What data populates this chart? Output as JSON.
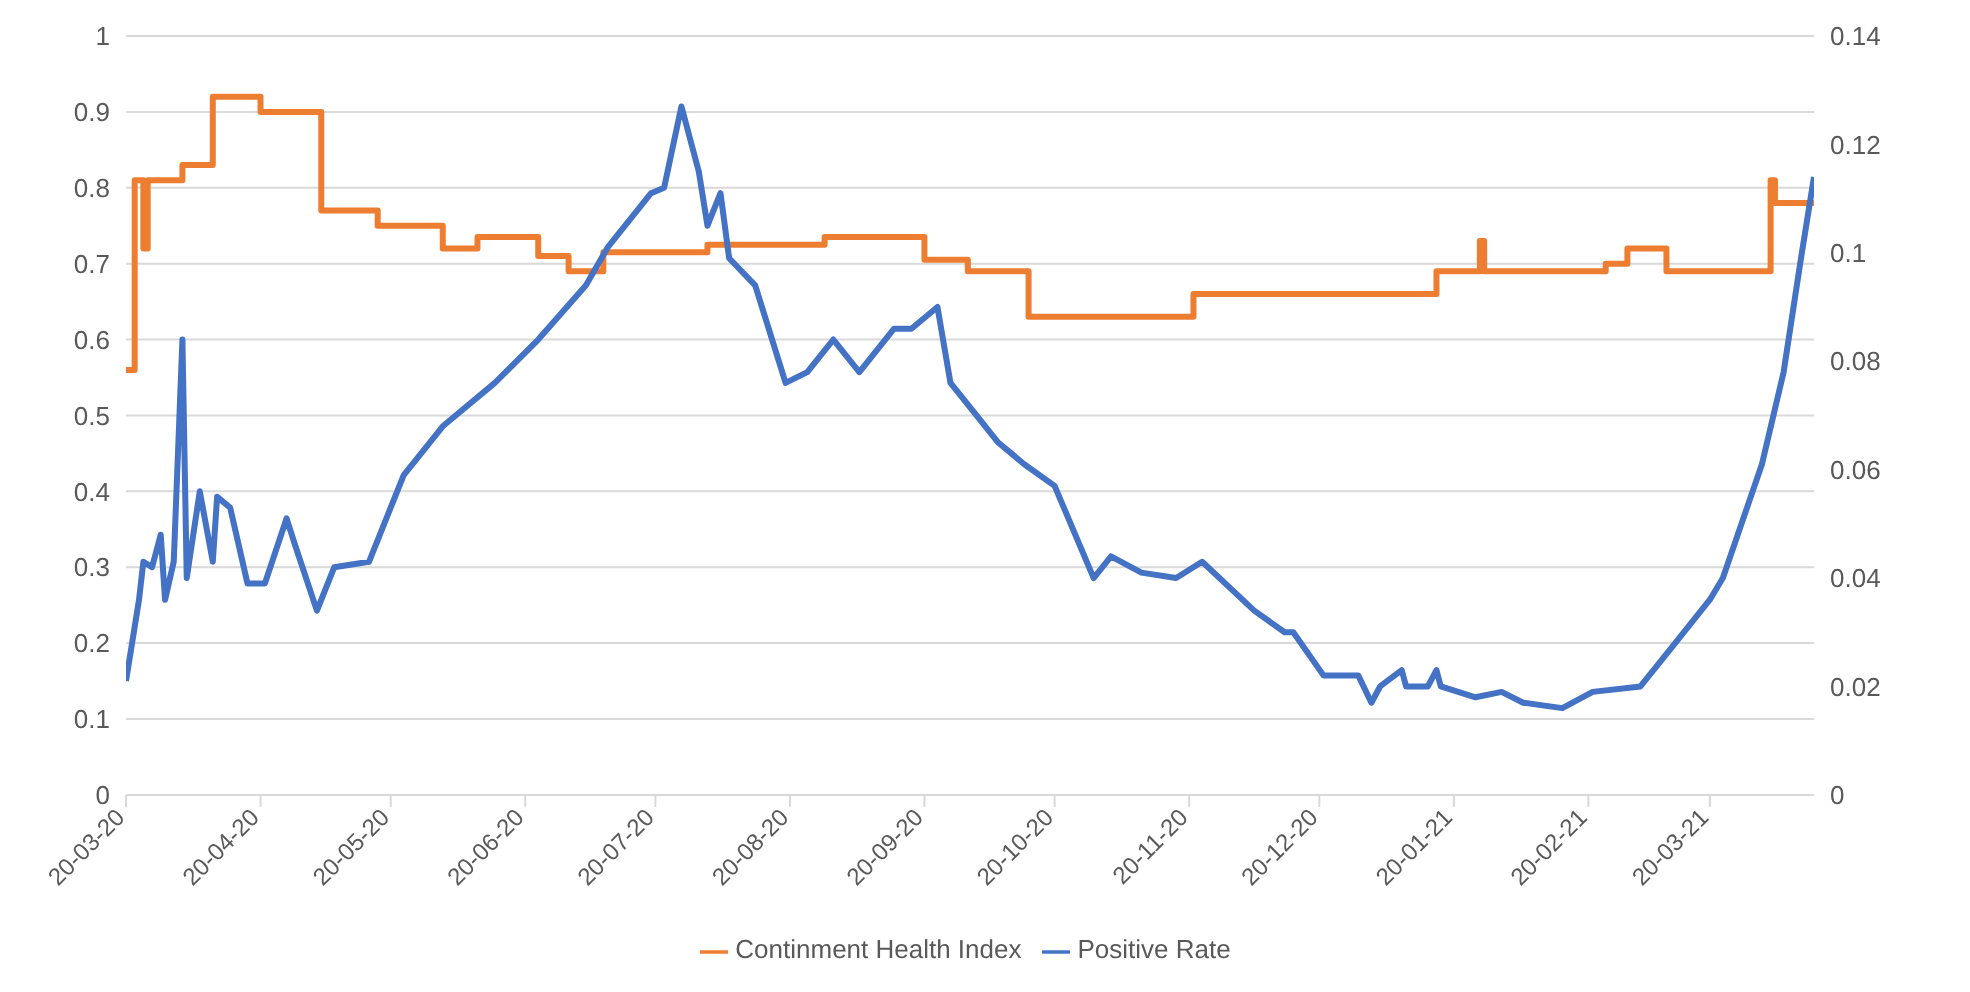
{
  "chart_data": {
    "type": "line",
    "xticks": [
      {
        "value": "2020-03-20",
        "label": "20-03-20"
      },
      {
        "value": "2020-04-20",
        "label": "20-04-20"
      },
      {
        "value": "2020-05-20",
        "label": "20-05-20"
      },
      {
        "value": "2020-06-20",
        "label": "20-06-20"
      },
      {
        "value": "2020-07-20",
        "label": "20-07-20"
      },
      {
        "value": "2020-08-20",
        "label": "20-08-20"
      },
      {
        "value": "2020-09-20",
        "label": "20-09-20"
      },
      {
        "value": "2020-10-20",
        "label": "20-10-20"
      },
      {
        "value": "2020-11-20",
        "label": "20-11-20"
      },
      {
        "value": "2020-12-20",
        "label": "20-12-20"
      },
      {
        "value": "2021-01-20",
        "label": "20-01-21"
      },
      {
        "value": "2021-02-20",
        "label": "20-02-21"
      },
      {
        "value": "2021-03-20",
        "label": "20-03-21"
      }
    ],
    "xlim": [
      "2020-03-20",
      "2021-04-13"
    ],
    "ylim": [
      0,
      1
    ],
    "yticks": [
      0,
      0.1,
      0.2,
      0.3,
      0.4,
      0.5,
      0.6,
      0.7,
      0.8,
      0.9,
      1
    ],
    "y2lim": [
      0,
      0.14
    ],
    "y2ticks": [
      0,
      0.02,
      0.04,
      0.06,
      0.08,
      0.1,
      0.12,
      0.14
    ],
    "grid": "y",
    "legend": "bottom",
    "marker": "none",
    "line_style": "solid",
    "series": [
      {
        "name": "Continment Health Index",
        "color": "#ed7d31",
        "type": "step",
        "x": [
          "2020-03-20",
          "2020-03-22",
          "2020-03-24",
          "2020-03-25",
          "2020-04-02",
          "2020-04-09",
          "2020-04-20",
          "2020-05-04",
          "2020-05-17",
          "2020-06-01",
          "2020-06-09",
          "2020-06-23",
          "2020-06-30",
          "2020-07-08",
          "2020-08-01",
          "2020-08-28",
          "2020-09-20",
          "2020-09-30",
          "2020-10-14",
          "2020-11-21",
          "2021-01-16",
          "2021-01-26",
          "2021-01-27",
          "2021-02-24",
          "2021-03-01",
          "2021-03-10",
          "2021-04-03",
          "2021-04-04",
          "2021-04-13"
        ],
        "values": [
          0.56,
          0.81,
          0.72,
          0.81,
          0.83,
          0.92,
          0.9,
          0.77,
          0.75,
          0.72,
          0.735,
          0.71,
          0.69,
          0.715,
          0.725,
          0.735,
          0.705,
          0.69,
          0.63,
          0.66,
          0.69,
          0.73,
          0.69,
          0.7,
          0.72,
          0.69,
          0.81,
          0.78,
          0.78
        ]
      },
      {
        "name": "Positive Rate",
        "color": "#4472c4",
        "type": "line",
        "axis": "y2",
        "x": [
          "2020-03-20",
          "2020-03-23",
          "2020-03-24",
          "2020-03-26",
          "2020-03-28",
          "2020-03-29",
          "2020-03-31",
          "2020-04-02",
          "2020-04-03",
          "2020-04-06",
          "2020-04-09",
          "2020-04-10",
          "2020-04-13",
          "2020-04-17",
          "2020-04-21",
          "2020-04-26",
          "2020-04-28",
          "2020-05-03",
          "2020-05-07",
          "2020-05-15",
          "2020-05-23",
          "2020-06-01",
          "2020-06-13",
          "2020-06-23",
          "2020-07-04",
          "2020-07-09",
          "2020-07-19",
          "2020-07-22",
          "2020-07-26",
          "2020-07-30",
          "2020-08-01",
          "2020-08-04",
          "2020-08-06",
          "2020-08-12",
          "2020-08-19",
          "2020-08-24",
          "2020-08-30",
          "2020-09-05",
          "2020-09-13",
          "2020-09-17",
          "2020-09-23",
          "2020-09-26",
          "2020-10-02",
          "2020-10-07",
          "2020-10-13",
          "2020-10-20",
          "2020-10-29",
          "2020-11-02",
          "2020-11-09",
          "2020-11-17",
          "2020-11-23",
          "2020-12-05",
          "2020-12-12",
          "2020-12-14",
          "2020-12-21",
          "2020-12-29",
          "2021-01-01",
          "2021-01-03",
          "2021-01-08",
          "2021-01-09",
          "2021-01-14",
          "2021-01-16",
          "2021-01-17",
          "2021-01-25",
          "2021-01-31",
          "2021-02-05",
          "2021-02-14",
          "2021-02-21",
          "2021-03-04",
          "2021-03-11",
          "2021-03-20",
          "2021-03-23",
          "2021-04-01",
          "2021-04-06",
          "2021-04-10",
          "2021-04-13"
        ],
        "values": [
          0.021,
          0.036,
          0.043,
          0.042,
          0.048,
          0.036,
          0.043,
          0.084,
          0.04,
          0.056,
          0.043,
          0.055,
          0.053,
          0.039,
          0.039,
          0.051,
          0.046,
          0.034,
          0.042,
          0.043,
          0.059,
          0.068,
          0.076,
          0.084,
          0.094,
          0.101,
          0.111,
          0.112,
          0.127,
          0.115,
          0.105,
          0.111,
          0.099,
          0.094,
          0.076,
          0.078,
          0.084,
          0.078,
          0.086,
          0.086,
          0.09,
          0.076,
          0.07,
          0.065,
          0.061,
          0.057,
          0.04,
          0.044,
          0.041,
          0.04,
          0.043,
          0.034,
          0.03,
          0.03,
          0.022,
          0.022,
          0.017,
          0.02,
          0.023,
          0.02,
          0.02,
          0.023,
          0.02,
          0.018,
          0.019,
          0.017,
          0.016,
          0.019,
          0.02,
          0.027,
          0.036,
          0.04,
          0.061,
          0.078,
          0.099,
          0.114
        ]
      }
    ]
  }
}
